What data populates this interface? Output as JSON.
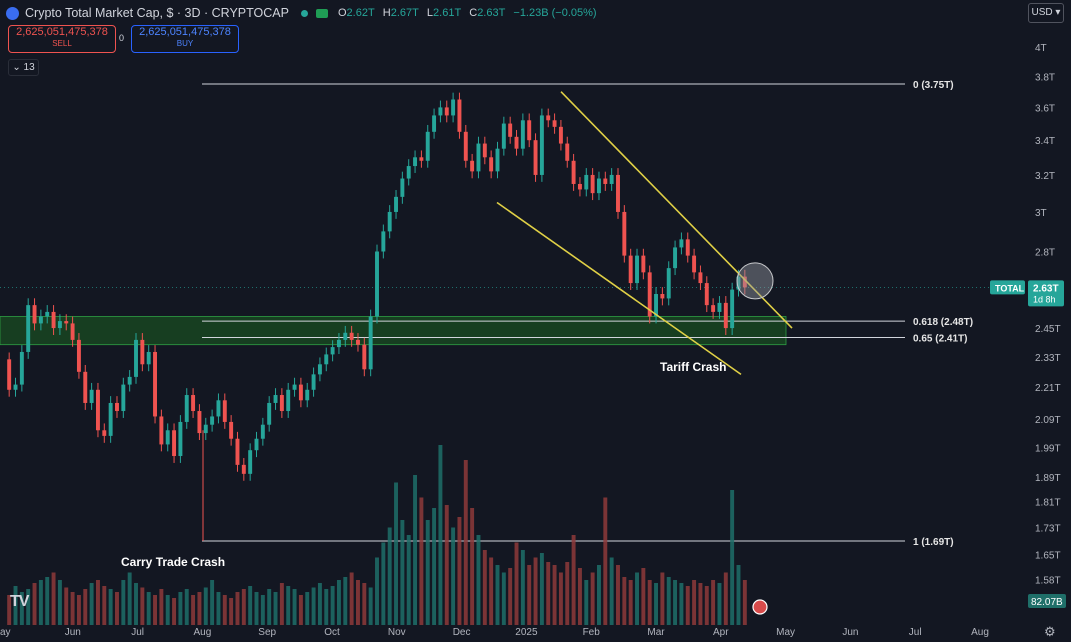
{
  "header": {
    "title": "Crypto Total Market Cap, $ · 3D · CRYPTOCAP",
    "ohlc": [
      {
        "label": "O",
        "value": "2.62T"
      },
      {
        "label": "H",
        "value": "2.67T"
      },
      {
        "label": "L",
        "value": "2.61T"
      },
      {
        "label": "C",
        "value": "2.63T"
      }
    ],
    "change": "−1.23B (−0.05%)"
  },
  "trade": {
    "sell_price": "2,625,051,475,378",
    "sell_label": "SELL",
    "spread": "0",
    "buy_price": "2,625,051,475,378",
    "buy_label": "BUY"
  },
  "indicators_count": "13",
  "currency": "USD",
  "colors": {
    "background": "#131722",
    "up": "#26a69a",
    "down": "#ef5350",
    "trendline": "#e0d046",
    "support_zone": "#1b5e20",
    "text": "#d1d4dc"
  },
  "icons": [
    "logo-icon",
    "market-status-dot-icon",
    "eye-icon",
    "tradingview-logo-icon",
    "settings-gear-icon",
    "us-flag-icon"
  ],
  "chart_data": {
    "type": "candlestick",
    "symbol": "TOTAL",
    "timeframe": "3D",
    "price_axis": {
      "scale": "log",
      "ticks": [
        "4T",
        "3.8T",
        "3.6T",
        "3.4T",
        "3.2T",
        "3T",
        "2.8T",
        "2.63T",
        "2.45T",
        "2.33T",
        "2.21T",
        "2.09T",
        "1.99T",
        "1.89T",
        "1.81T",
        "1.73T",
        "1.65T",
        "1.58T"
      ]
    },
    "time_axis": [
      "ay",
      "Jun",
      "Jul",
      "Aug",
      "Sep",
      "Oct",
      "Nov",
      "Dec",
      "2025",
      "Feb",
      "Mar",
      "Apr",
      "May",
      "Jun",
      "Jul",
      "Aug"
    ],
    "last_price": {
      "label": "TOTAL",
      "value": "2.63T",
      "countdown": "1d 8h"
    },
    "volume_label": "82.07B",
    "fibonacci": [
      {
        "label": "0 (3.75T)",
        "value": 3.75
      },
      {
        "label": "0.618 (2.48T)",
        "value": 2.48
      },
      {
        "label": "0.65 (2.41T)",
        "value": 2.41
      },
      {
        "label": "1 (1.69T)",
        "value": 1.69
      }
    ],
    "annotations": [
      {
        "text": "Tariff Crash"
      },
      {
        "text": "Carry Trade Crash"
      }
    ],
    "support_zone": {
      "low": 2.38,
      "high": 2.5
    },
    "price_path": [
      2.32,
      2.2,
      2.22,
      2.35,
      2.55,
      2.47,
      2.5,
      2.52,
      2.45,
      2.48,
      2.47,
      2.4,
      2.27,
      2.15,
      2.2,
      2.05,
      2.03,
      2.15,
      2.12,
      2.22,
      2.25,
      2.4,
      2.3,
      2.35,
      2.1,
      2.0,
      2.05,
      1.96,
      2.08,
      2.18,
      2.12,
      2.04,
      2.07,
      2.1,
      2.16,
      2.08,
      2.02,
      1.93,
      1.9,
      1.98,
      2.02,
      2.07,
      2.15,
      2.18,
      2.12,
      2.2,
      2.22,
      2.16,
      2.2,
      2.26,
      2.3,
      2.34,
      2.37,
      2.4,
      2.43,
      2.4,
      2.38,
      2.28,
      2.5,
      2.8,
      2.9,
      3.0,
      3.08,
      3.18,
      3.25,
      3.3,
      3.28,
      3.45,
      3.55,
      3.6,
      3.55,
      3.65,
      3.45,
      3.28,
      3.22,
      3.38,
      3.3,
      3.22,
      3.35,
      3.5,
      3.42,
      3.35,
      3.52,
      3.4,
      3.2,
      3.55,
      3.52,
      3.48,
      3.38,
      3.28,
      3.15,
      3.12,
      3.2,
      3.1,
      3.18,
      3.15,
      3.2,
      3.0,
      2.78,
      2.65,
      2.78,
      2.7,
      2.5,
      2.6,
      2.58,
      2.72,
      2.82,
      2.86,
      2.78,
      2.7,
      2.65,
      2.55,
      2.52,
      2.56,
      2.45,
      2.62,
      2.68,
      2.63
    ],
    "volume_path": [
      0.2,
      0.26,
      0.22,
      0.24,
      0.28,
      0.3,
      0.32,
      0.35,
      0.3,
      0.25,
      0.22,
      0.2,
      0.24,
      0.28,
      0.3,
      0.26,
      0.24,
      0.22,
      0.3,
      0.35,
      0.28,
      0.25,
      0.22,
      0.2,
      0.24,
      0.2,
      0.18,
      0.22,
      0.24,
      0.2,
      0.22,
      0.25,
      0.3,
      0.22,
      0.2,
      0.18,
      0.22,
      0.24,
      0.26,
      0.22,
      0.2,
      0.24,
      0.22,
      0.28,
      0.26,
      0.24,
      0.2,
      0.22,
      0.25,
      0.28,
      0.24,
      0.26,
      0.3,
      0.32,
      0.35,
      0.3,
      0.28,
      0.25,
      0.45,
      0.55,
      0.65,
      0.95,
      0.7,
      0.6,
      1.0,
      0.85,
      0.7,
      0.78,
      1.2,
      0.8,
      0.65,
      0.72,
      1.1,
      0.78,
      0.6,
      0.5,
      0.45,
      0.4,
      0.35,
      0.38,
      0.55,
      0.5,
      0.4,
      0.45,
      0.48,
      0.42,
      0.4,
      0.35,
      0.42,
      0.6,
      0.38,
      0.3,
      0.35,
      0.4,
      0.85,
      0.45,
      0.4,
      0.32,
      0.3,
      0.35,
      0.38,
      0.3,
      0.28,
      0.35,
      0.32,
      0.3,
      0.28,
      0.26,
      0.3,
      0.28,
      0.26,
      0.3,
      0.28,
      0.35,
      0.9,
      0.4,
      0.3,
      0.22
    ]
  }
}
